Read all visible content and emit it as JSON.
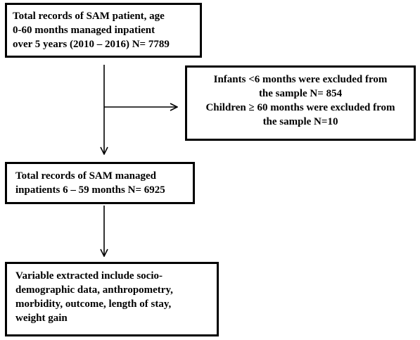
{
  "boxes": {
    "total_records": {
      "lines": [
        "Total records of SAM patient, age",
        "0-60 months managed inpatient",
        "over 5 years (2010 – 2016) N= 7789"
      ]
    },
    "excluded": {
      "lines": [
        "Infants <6 months were excluded from",
        "the sample N= 854",
        "Children ≥ 60 months were excluded from",
        "the sample N=10"
      ]
    },
    "managed_inpatients": {
      "lines": [
        "Total records of SAM managed",
        "inpatients 6 – 59 months N= 6925"
      ]
    },
    "variables": {
      "lines": [
        "Variable extracted include socio-",
        "demographic data, anthropometry,",
        "morbidity, outcome, length of stay,",
        "weight gain"
      ]
    }
  },
  "colors": {
    "stroke": "#000000",
    "background": "#ffffff"
  }
}
